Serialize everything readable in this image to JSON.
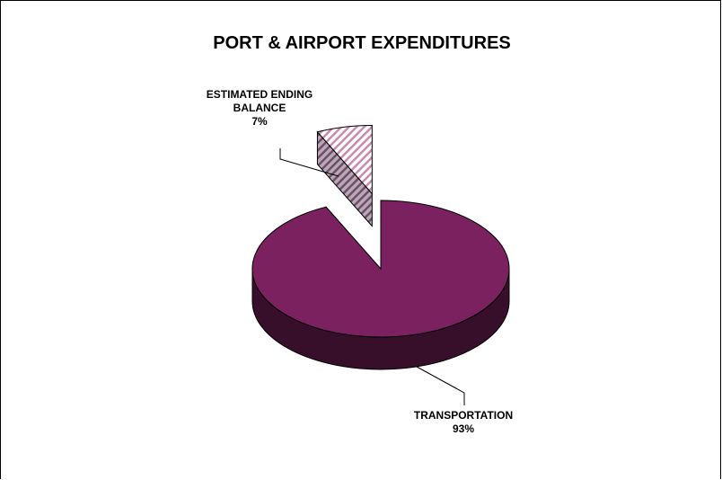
{
  "chart_data": {
    "type": "pie",
    "title": "PORT & AIRPORT EXPENDITURES",
    "slices": [
      {
        "name": "TRANSPORTATION",
        "value": 93,
        "value_label": "93%",
        "color": "#7B2160"
      },
      {
        "name_lines": [
          "ESTIMATED ENDING",
          "BALANCE"
        ],
        "value": 7,
        "value_label": "7%",
        "color": "#C98AAE",
        "pattern": "diagonal-hatch",
        "exploded": true
      }
    ],
    "style": "3d"
  }
}
